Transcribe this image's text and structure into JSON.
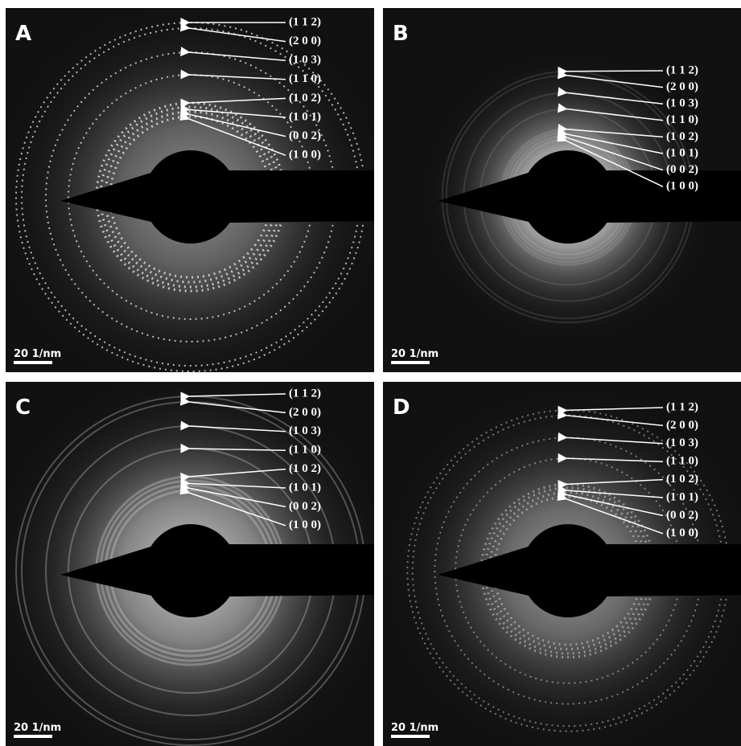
{
  "panels": [
    {
      "label": "A",
      "scale_bar": "20 1/nm",
      "rings": [
        "(1 1 2)",
        "(2 0 0)",
        "(1 0 3)",
        "(1 1 0)",
        "(1 0 2)",
        "(1 0 1)",
        "(0 0 2)",
        "(1 0 0)"
      ]
    },
    {
      "label": "B",
      "scale_bar": "20 1/nm",
      "rings": [
        "(1 1 2)",
        "(2 0 0)",
        "(1 0 3)",
        "(1 1 0)",
        "(1 0 2)",
        "(1 0 1)",
        "(0 0 2)",
        "(1 0 0)"
      ]
    },
    {
      "label": "C",
      "scale_bar": "20 1/nm",
      "rings": [
        "(1 1 2)",
        "(2 0 0)",
        "(1 0 3)",
        "(1 1 0)",
        "(1 0 2)",
        "(1 0 1)",
        "(0 0 2)",
        "(1 0 0)"
      ]
    },
    {
      "label": "D",
      "scale_bar": "20 1/nm",
      "rings": [
        "(1 1 2)",
        "(2 0 0)",
        "(1 0 3)",
        "(1 1 0)",
        "(1 0 2)",
        "(1 0 1)",
        "(0 0 2)",
        "(1 0 0)"
      ]
    }
  ]
}
